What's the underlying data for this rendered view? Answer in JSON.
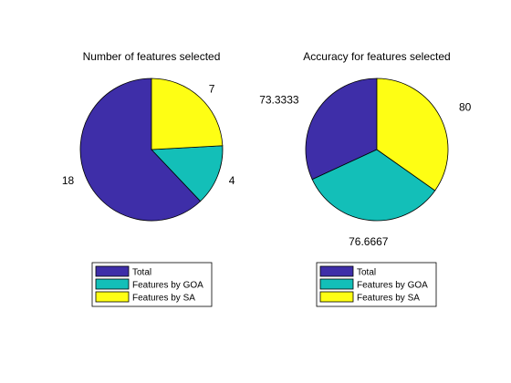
{
  "chart_data": [
    {
      "type": "pie",
      "title": "Number of features selected",
      "categories": [
        "Total",
        "Features by GOA",
        "Features by SA"
      ],
      "values": [
        18,
        4,
        7
      ],
      "slice_labels": [
        "18",
        "4",
        "7"
      ],
      "colors": [
        "#3e2ea8",
        "#13bfb8",
        "#fefe14"
      ],
      "legend": {
        "placement": "bottom",
        "entries": [
          "Total",
          "Features by GOA",
          "Features by SA"
        ]
      }
    },
    {
      "type": "pie",
      "title": "Accuracy for features selected",
      "categories": [
        "Total",
        "Features by GOA",
        "Features by SA"
      ],
      "values": [
        73.3333,
        76.6667,
        80
      ],
      "slice_labels": [
        "73.3333",
        "76.6667",
        "80"
      ],
      "colors": [
        "#3e2ea8",
        "#13bfb8",
        "#fefe14"
      ],
      "legend": {
        "placement": "bottom",
        "entries": [
          "Total",
          "Features by GOA",
          "Features by SA"
        ]
      }
    }
  ]
}
